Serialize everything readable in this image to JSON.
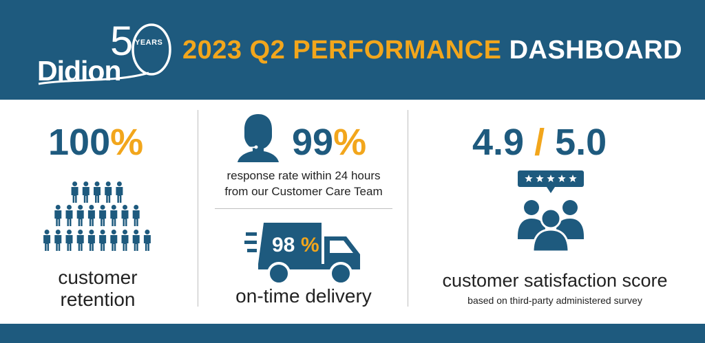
{
  "header": {
    "logo_text": "Didion",
    "logo_years_label": "YEARS",
    "logo_number": "50",
    "title_highlight": "2023 Q2 PERFORMANCE",
    "title_rest": "DASHBOARD"
  },
  "retention": {
    "value": "100",
    "unit": "%",
    "label_line1": "customer",
    "label_line2": "retention"
  },
  "response": {
    "value": "99",
    "unit": "%",
    "caption_line1": "response rate within 24 hours",
    "caption_line2": "from our Customer Care Team"
  },
  "delivery": {
    "value": "98",
    "unit": "%",
    "label": "on-time delivery"
  },
  "satisfaction": {
    "score": "4.9",
    "separator": "/",
    "max": "5.0",
    "label": "customer satisfaction score",
    "caption": "based on third-party administered survey",
    "stars": 5
  },
  "colors": {
    "navy": "#1e5a7e",
    "gold": "#f2a61c"
  },
  "icons": {
    "agent": "headset-agent-icon",
    "truck": "delivery-truck-icon",
    "people": "people-group-icon",
    "crowd": "crowd-pyramid-icon",
    "rating": "star-rating-bubble-icon"
  }
}
